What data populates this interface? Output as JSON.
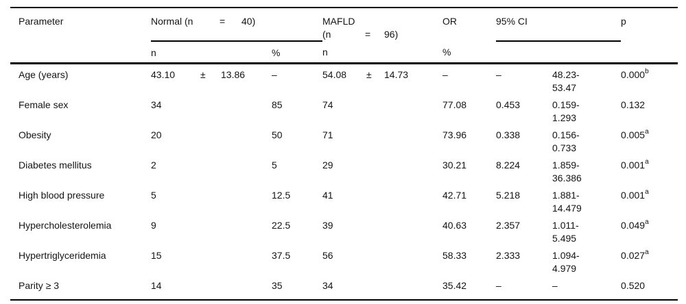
{
  "table": {
    "header": {
      "parameter": "Parameter",
      "normal": {
        "p1": "Normal (n",
        "eq": "=",
        "p2": "40)"
      },
      "mafld": {
        "p1": "MAFLD (n",
        "eq": "=",
        "p2": "96)"
      },
      "or": "OR",
      "ci": "95% CI",
      "p": "p",
      "sub": {
        "n1": "n",
        "pct1": "%",
        "n2": "n",
        "pct2": "%"
      }
    },
    "rows": [
      {
        "param": "Age (years)",
        "n1a": "43.10",
        "n1pm": "±",
        "n1b": "13.86",
        "pct1": "–",
        "n2a": "54.08",
        "n2pm": "±",
        "n2b": "14.73",
        "pct2": "–",
        "or": "–",
        "ci": "48.23-\n53.47",
        "p": "0.000",
        "psup": "b"
      },
      {
        "param": "Female sex",
        "n1a": "34",
        "n1pm": "",
        "n1b": "",
        "pct1": "85",
        "n2a": "74",
        "n2pm": "",
        "n2b": "",
        "pct2": "77.08",
        "or": "0.453",
        "ci": "0.159-\n1.293",
        "p": "0.132",
        "psup": ""
      },
      {
        "param": "Obesity",
        "n1a": "20",
        "n1pm": "",
        "n1b": "",
        "pct1": "50",
        "n2a": "71",
        "n2pm": "",
        "n2b": "",
        "pct2": "73.96",
        "or": "0.338",
        "ci": "0.156-\n0.733",
        "p": "0.005",
        "psup": "a"
      },
      {
        "param": "Diabetes mellitus",
        "n1a": "2",
        "n1pm": "",
        "n1b": "",
        "pct1": "5",
        "n2a": "29",
        "n2pm": "",
        "n2b": "",
        "pct2": "30.21",
        "or": "8.224",
        "ci": "1.859-\n36.386",
        "p": "0.001",
        "psup": "a"
      },
      {
        "param": "High blood pressure",
        "n1a": "5",
        "n1pm": "",
        "n1b": "",
        "pct1": "12.5",
        "n2a": "41",
        "n2pm": "",
        "n2b": "",
        "pct2": "42.71",
        "or": "5.218",
        "ci": "1.881-\n14.479",
        "p": "0.001",
        "psup": "a"
      },
      {
        "param": "Hypercholesterolemia",
        "n1a": "9",
        "n1pm": "",
        "n1b": "",
        "pct1": "22.5",
        "n2a": "39",
        "n2pm": "",
        "n2b": "",
        "pct2": "40.63",
        "or": "2.357",
        "ci": "1.011-\n5.495",
        "p": "0.049",
        "psup": "a"
      },
      {
        "param": "Hypertriglyceridemia",
        "n1a": "15",
        "n1pm": "",
        "n1b": "",
        "pct1": "37.5",
        "n2a": "56",
        "n2pm": "",
        "n2b": "",
        "pct2": "58.33",
        "or": "2.333",
        "ci": "1.094-\n4.979",
        "p": "0.027",
        "psup": "a"
      },
      {
        "param": "Parity ≥ 3",
        "n1a": "14",
        "n1pm": "",
        "n1b": "",
        "pct1": "35",
        "n2a": "34",
        "n2pm": "",
        "n2b": "",
        "pct2": "35.42",
        "or": "–",
        "ci": "–",
        "p": "0.520",
        "psup": ""
      }
    ]
  }
}
